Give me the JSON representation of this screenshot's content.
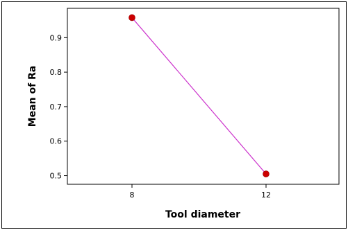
{
  "chart_data": {
    "type": "line",
    "title": "",
    "xlabel": "Tool diameter",
    "ylabel": "Mean of Ra",
    "categories": [
      "8",
      "12"
    ],
    "series": [
      {
        "values": [
          0.958,
          0.505
        ],
        "line_color": "#cc33cc",
        "marker_color": "#cc0000"
      }
    ],
    "yticks": [
      0.5,
      0.6,
      0.7,
      0.8,
      0.9
    ],
    "ytick_labels": [
      "0.5",
      "0.6",
      "0.7",
      "0.8",
      "0.9"
    ],
    "ylim": [
      0.475,
      0.985
    ],
    "grid": false,
    "legend": "none"
  }
}
